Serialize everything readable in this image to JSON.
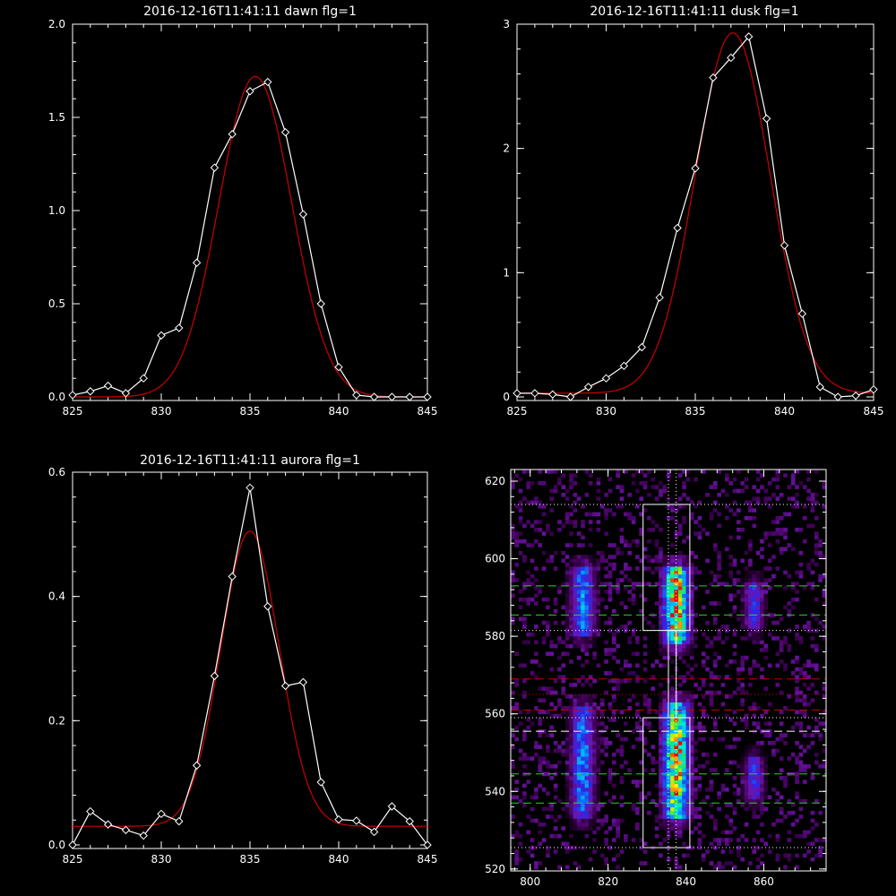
{
  "colors": {
    "background": "#000000",
    "axes": "#ffffff",
    "data": "#ffffff",
    "fit": "#cc0000"
  },
  "chart_data": [
    {
      "type": "line",
      "title": "2016-12-16T11:41:11 dawn flg=1",
      "xlim": [
        825,
        845
      ],
      "ylim": [
        0,
        2.0
      ],
      "xticks": [
        "825",
        "830",
        "835",
        "840",
        "845"
      ],
      "yticks": [
        "0.0",
        "0.5",
        "1.0",
        "1.5",
        "2.0"
      ],
      "xtick_values": [
        825,
        830,
        835,
        840,
        845
      ],
      "ytick_values": [
        0,
        0.5,
        1.0,
        1.5,
        2.0
      ],
      "series": [
        {
          "style": "white line with diamond markers",
          "x": [
            825,
            826,
            827,
            828,
            829,
            830,
            831,
            832,
            833,
            834,
            835,
            836,
            837,
            838,
            839,
            840,
            841,
            842,
            843,
            844,
            845
          ],
          "y": [
            0.01,
            0.03,
            0.06,
            0.02,
            0.1,
            0.33,
            0.37,
            0.72,
            1.23,
            1.41,
            1.64,
            1.69,
            1.42,
            0.98,
            0.5,
            0.16,
            0.01,
            0.0,
            0.0,
            0.0,
            0.0
          ]
        },
        {
          "style": "red gaussian fit",
          "gaussian": {
            "amplitude": 1.72,
            "center": 835.3,
            "sigma": 2.05,
            "offset": 0.0
          }
        }
      ]
    },
    {
      "type": "line",
      "title": "2016-12-16T11:41:11 dusk flg=1",
      "xlim": [
        825,
        845
      ],
      "ylim": [
        0,
        3.0
      ],
      "xticks": [
        "825",
        "830",
        "835",
        "840",
        "845"
      ],
      "yticks": [
        "0",
        "1",
        "2",
        "3"
      ],
      "xtick_values": [
        825,
        830,
        835,
        840,
        845
      ],
      "ytick_values": [
        0,
        1,
        2,
        3
      ],
      "series": [
        {
          "style": "white line with diamond markers",
          "x": [
            825,
            826,
            827,
            828,
            829,
            830,
            831,
            832,
            833,
            834,
            835,
            836,
            837,
            838,
            839,
            840,
            841,
            842,
            843,
            844,
            845
          ],
          "y": [
            0.03,
            0.03,
            0.02,
            0.0,
            0.08,
            0.15,
            0.25,
            0.4,
            0.8,
            1.36,
            1.84,
            2.57,
            2.73,
            2.9,
            2.24,
            1.22,
            0.67,
            0.08,
            0.0,
            0.01,
            0.06
          ]
        },
        {
          "style": "red gaussian fit",
          "gaussian": {
            "amplitude": 2.9,
            "center": 837.1,
            "sigma": 2.1,
            "offset": 0.03
          }
        }
      ]
    },
    {
      "type": "line",
      "title": "2016-12-16T11:41:11 aurora flg=1",
      "xlim": [
        825,
        845
      ],
      "ylim": [
        0,
        0.6
      ],
      "xticks": [
        "825",
        "830",
        "835",
        "840",
        "845"
      ],
      "yticks": [
        "0.0",
        "0.2",
        "0.4",
        "0.6"
      ],
      "xtick_values": [
        825,
        830,
        835,
        840,
        845
      ],
      "ytick_values": [
        0,
        0.2,
        0.4,
        0.6
      ],
      "series": [
        {
          "style": "white line with diamond markers",
          "x": [
            825,
            826,
            827,
            828,
            829,
            830,
            831,
            832,
            833,
            834,
            835,
            836,
            837,
            838,
            839,
            840,
            841,
            842,
            843,
            844,
            845
          ],
          "y": [
            0.0,
            0.054,
            0.033,
            0.024,
            0.015,
            0.05,
            0.038,
            0.128,
            0.272,
            0.432,
            0.575,
            0.384,
            0.256,
            0.262,
            0.101,
            0.041,
            0.039,
            0.021,
            0.062,
            0.038,
            0.0
          ]
        },
        {
          "style": "red gaussian fit",
          "gaussian": {
            "amplitude": 0.475,
            "center": 835.0,
            "sigma": 1.65,
            "offset": 0.03
          }
        }
      ]
    },
    {
      "type": "heatmap",
      "title": "",
      "xlim": [
        795,
        876
      ],
      "ylim": [
        519.5,
        623
      ],
      "xticks": [
        "800",
        "820",
        "840",
        "860"
      ],
      "yticks": [
        "520",
        "540",
        "560",
        "580",
        "600",
        "620"
      ],
      "xtick_values": [
        800,
        820,
        840,
        860
      ],
      "ytick_values": [
        520,
        540,
        560,
        580,
        600,
        620
      ],
      "colormap": "black-purple-blue-cyan-green-yellow-red",
      "intensity_columns": [
        {
          "x": 813,
          "width": 6,
          "y_ranges": [
            [
              533,
              561
            ],
            [
              580,
              597
            ]
          ],
          "peak": 0.55
        },
        {
          "x": 837,
          "width": 7,
          "y_ranges": [
            [
              533,
              562
            ],
            [
              578,
              597
            ]
          ],
          "peak": 1.0
        },
        {
          "x": 857,
          "width": 5,
          "y_ranges": [
            [
              538,
              548
            ],
            [
              582,
              593
            ]
          ],
          "peak": 0.4
        }
      ],
      "boxes": [
        {
          "x": [
            829,
            841
          ],
          "y": [
            525.5,
            614
          ]
        },
        {
          "x": [
            829,
            841
          ],
          "y": [
            525.5,
            559
          ]
        }
      ],
      "vertical_dotted_lines": [
        835.5,
        837.5
      ],
      "horizontal_lines": [
        {
          "y": 614,
          "style": "dotted",
          "color": "#ffffff"
        },
        {
          "y": 593,
          "style": "dashed",
          "color": "#33cc33"
        },
        {
          "y": 585.5,
          "style": "dashed",
          "color": "#33cc33"
        },
        {
          "y": 581.5,
          "style": "dotted",
          "color": "#ffffff"
        },
        {
          "y": 569,
          "style": "dashed",
          "color": "#cc0000"
        },
        {
          "y": 565,
          "style": "dotted",
          "color": "#cc0000"
        },
        {
          "y": 561,
          "style": "dashed",
          "color": "#cc0000"
        },
        {
          "y": 559,
          "style": "dotted",
          "color": "#ffffff"
        },
        {
          "y": 555.5,
          "style": "dashed",
          "color": "#ffffff"
        },
        {
          "y": 544.5,
          "style": "dashed",
          "color": "#33cc33"
        },
        {
          "y": 537,
          "style": "dashed",
          "color": "#33cc33"
        },
        {
          "y": 525.5,
          "style": "dotted",
          "color": "#ffffff"
        }
      ]
    }
  ]
}
